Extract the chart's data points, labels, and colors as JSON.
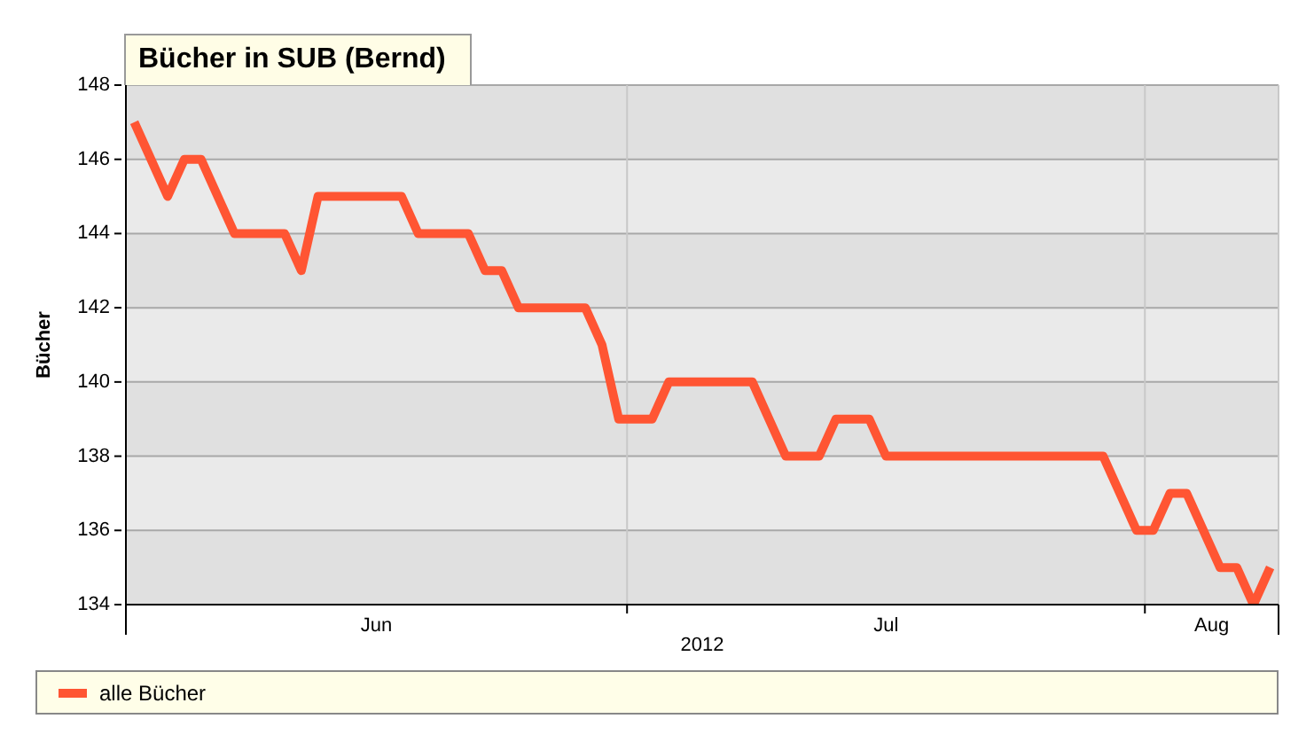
{
  "chart_data": {
    "type": "line",
    "title": "Bücher in SUB (Bernd)",
    "xlabel": "2012",
    "ylabel": "Bücher",
    "x": [
      "2012-06-01T12:00",
      "2012-06-03T12:00",
      "2012-06-04T12:00",
      "2012-06-05T12:00",
      "2012-06-07T12:00",
      "2012-06-10T12:00",
      "2012-06-11T12:00",
      "2012-06-12T12:00",
      "2012-06-17T12:00",
      "2012-06-18T12:00",
      "2012-06-21T12:00",
      "2012-06-22T12:00",
      "2012-06-23T12:00",
      "2012-06-24T12:00",
      "2012-06-28T12:00",
      "2012-06-29T12:00",
      "2012-06-30T12:00",
      "2012-07-02T12:00",
      "2012-07-03T12:00",
      "2012-07-08T12:00",
      "2012-07-10T12:00",
      "2012-07-12T12:00",
      "2012-07-13T12:00",
      "2012-07-15T12:00",
      "2012-07-16T12:00",
      "2012-07-29T12:00",
      "2012-07-31T12:00",
      "2012-08-01T12:00",
      "2012-08-02T12:00",
      "2012-08-03T12:00",
      "2012-08-05T12:00",
      "2012-08-06T12:00",
      "2012-08-07T12:00",
      "2012-08-08T12:00"
    ],
    "series": [
      {
        "name": "alle Bücher",
        "color": "#ff5533",
        "values": [
          147,
          145,
          146,
          146,
          144,
          144,
          143,
          145,
          145,
          144,
          144,
          143,
          143,
          142,
          142,
          141,
          139,
          139,
          140,
          140,
          138,
          138,
          139,
          139,
          138,
          138,
          136,
          136,
          137,
          137,
          135,
          135,
          134,
          135
        ]
      }
    ],
    "xlim": [
      "2012-06-01",
      "2012-08-09"
    ],
    "xticks": [
      {
        "value": "2012-06-01",
        "label": null
      },
      {
        "value": "2012-06-16",
        "label": "Jun"
      },
      {
        "value": "2012-07-01",
        "label": null
      },
      {
        "value": "2012-07-16T12:00",
        "label": "Jul"
      },
      {
        "value": "2012-08-01",
        "label": null
      },
      {
        "value": "2012-08-05",
        "label": "Aug"
      },
      {
        "value": "2012-08-09",
        "label": null
      }
    ],
    "ylim": [
      134,
      148
    ],
    "yticks": [
      134,
      136,
      138,
      140,
      142,
      144,
      146,
      148
    ],
    "grid": true,
    "legend": "bottom",
    "marker": "none",
    "line_style": "solid"
  }
}
